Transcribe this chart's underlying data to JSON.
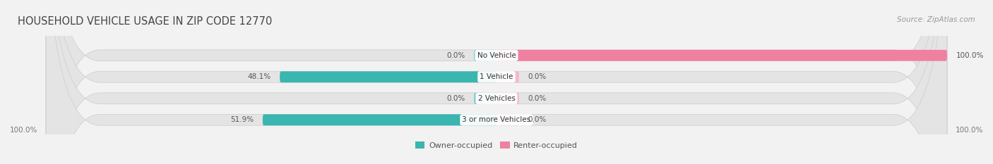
{
  "title": "HOUSEHOLD VEHICLE USAGE IN ZIP CODE 12770",
  "source": "Source: ZipAtlas.com",
  "categories": [
    "No Vehicle",
    "1 Vehicle",
    "2 Vehicles",
    "3 or more Vehicles"
  ],
  "owner_values": [
    0.0,
    48.1,
    0.0,
    51.9
  ],
  "renter_values": [
    100.0,
    0.0,
    0.0,
    0.0
  ],
  "owner_color": "#3ab5b0",
  "renter_color": "#f080a0",
  "owner_stub_color": "#7ecece",
  "renter_stub_color": "#f4b8cc",
  "bg_color": "#f2f2f2",
  "bar_bg_color": "#e4e4e4",
  "title_fontsize": 10.5,
  "source_fontsize": 7.5,
  "label_fontsize": 7.5,
  "cat_fontsize": 7.5,
  "legend_fontsize": 8,
  "bar_height": 0.52,
  "figsize": [
    14.06,
    2.33
  ],
  "dpi": 100
}
